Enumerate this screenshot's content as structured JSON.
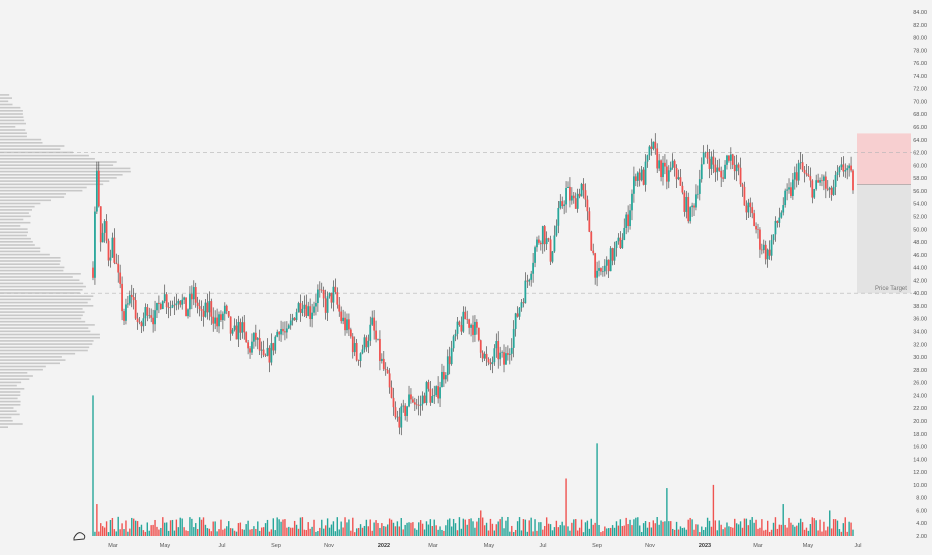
{
  "chart_data": {
    "type": "candlestick",
    "title": "",
    "xlabel": "",
    "ylabel": "",
    "ylim": [
      2,
      86
    ],
    "y_ticks": [
      "2.00",
      "4.00",
      "6.00",
      "8.00",
      "10.00",
      "12.00",
      "14.00",
      "16.00",
      "18.00",
      "20.00",
      "22.00",
      "24.00",
      "26.00",
      "28.00",
      "30.00",
      "32.00",
      "34.00",
      "36.00",
      "38.00",
      "40.00",
      "42.00",
      "44.00",
      "46.00",
      "48.00",
      "50.00",
      "52.00",
      "54.00",
      "56.00",
      "58.00",
      "60.00",
      "62.00",
      "64.00",
      "66.00",
      "68.00",
      "70.00",
      "72.00",
      "74.00",
      "76.00",
      "78.00",
      "80.00",
      "82.00",
      "84.00"
    ],
    "x_ticks": [
      {
        "label": "Mar",
        "bold": false
      },
      {
        "label": "May",
        "bold": false
      },
      {
        "label": "Jul",
        "bold": false
      },
      {
        "label": "Sep",
        "bold": false
      },
      {
        "label": "Nov",
        "bold": false
      },
      {
        "label": "2022",
        "bold": true
      },
      {
        "label": "Mar",
        "bold": false
      },
      {
        "label": "May",
        "bold": false
      },
      {
        "label": "Jul",
        "bold": false
      },
      {
        "label": "Sep",
        "bold": false
      },
      {
        "label": "Nov",
        "bold": false
      },
      {
        "label": "2023",
        "bold": true
      },
      {
        "label": "Mar",
        "bold": false
      },
      {
        "label": "May",
        "bold": false
      },
      {
        "label": "Jul",
        "bold": false
      }
    ],
    "price_path": [
      [
        0,
        44
      ],
      [
        1,
        60
      ],
      [
        2,
        48
      ],
      [
        3,
        50
      ],
      [
        4,
        46
      ],
      [
        5,
        48
      ],
      [
        6,
        44
      ],
      [
        8,
        36
      ],
      [
        10,
        40
      ],
      [
        12,
        34
      ],
      [
        14,
        38
      ],
      [
        16,
        36
      ],
      [
        18,
        40
      ],
      [
        20,
        38
      ],
      [
        22,
        40
      ],
      [
        24,
        37
      ],
      [
        26,
        40
      ],
      [
        28,
        36
      ],
      [
        30,
        38
      ],
      [
        32,
        35
      ],
      [
        34,
        37
      ],
      [
        36,
        33
      ],
      [
        38,
        35
      ],
      [
        40,
        31
      ],
      [
        42,
        33
      ],
      [
        44,
        29
      ],
      [
        46,
        31
      ],
      [
        48,
        35
      ],
      [
        50,
        33
      ],
      [
        52,
        37
      ],
      [
        54,
        39
      ],
      [
        56,
        37
      ],
      [
        58,
        40
      ],
      [
        60,
        38
      ],
      [
        62,
        40
      ],
      [
        64,
        36
      ],
      [
        66,
        34
      ],
      [
        68,
        30
      ],
      [
        70,
        32
      ],
      [
        72,
        35
      ],
      [
        74,
        30
      ],
      [
        76,
        26
      ],
      [
        78,
        20
      ],
      [
        80,
        21
      ],
      [
        82,
        24
      ],
      [
        84,
        22
      ],
      [
        86,
        25
      ],
      [
        88,
        23
      ],
      [
        90,
        27
      ],
      [
        92,
        30
      ],
      [
        94,
        34
      ],
      [
        96,
        36
      ],
      [
        98,
        35
      ],
      [
        100,
        32
      ],
      [
        102,
        28
      ],
      [
        104,
        31
      ],
      [
        106,
        29
      ],
      [
        108,
        33
      ],
      [
        110,
        38
      ],
      [
        112,
        42
      ],
      [
        114,
        47
      ],
      [
        116,
        50
      ],
      [
        118,
        46
      ],
      [
        120,
        52
      ],
      [
        122,
        56
      ],
      [
        124,
        54
      ],
      [
        126,
        57
      ],
      [
        128,
        50
      ],
      [
        130,
        42
      ],
      [
        132,
        44
      ],
      [
        134,
        46
      ],
      [
        136,
        48
      ],
      [
        138,
        52
      ],
      [
        140,
        59
      ],
      [
        142,
        58
      ],
      [
        144,
        63
      ],
      [
        146,
        60
      ],
      [
        148,
        58
      ],
      [
        150,
        60
      ],
      [
        152,
        55
      ],
      [
        154,
        52
      ],
      [
        156,
        57
      ],
      [
        158,
        62
      ],
      [
        160,
        60
      ],
      [
        162,
        58
      ],
      [
        164,
        62
      ],
      [
        166,
        60
      ],
      [
        168,
        54
      ],
      [
        170,
        52
      ],
      [
        172,
        48
      ],
      [
        174,
        46
      ],
      [
        176,
        50
      ],
      [
        178,
        54
      ],
      [
        180,
        56
      ],
      [
        182,
        60
      ],
      [
        184,
        58
      ],
      [
        186,
        56
      ],
      [
        188,
        58
      ],
      [
        190,
        55
      ],
      [
        192,
        58
      ],
      [
        194,
        60
      ],
      [
        196,
        57
      ]
    ],
    "volume_peaks": [
      {
        "x": 0,
        "v": 22
      },
      {
        "x": 1,
        "v": 5
      },
      {
        "x": 100,
        "v": 4
      },
      {
        "x": 122,
        "v": 9
      },
      {
        "x": 130,
        "v": 14.5
      },
      {
        "x": 148,
        "v": 7.5
      },
      {
        "x": 160,
        "v": 8
      },
      {
        "x": 178,
        "v": 5
      },
      {
        "x": 190,
        "v": 4
      }
    ],
    "volume_profile": {
      "price_min": 19,
      "price_max": 71,
      "peak_price": 59,
      "secondary_peak_price": 40
    },
    "reference_lines": [
      62,
      40
    ],
    "target_zone": {
      "stop_high": 65,
      "entry": 57,
      "target": 40
    },
    "annotation": "Price Target",
    "colors": {
      "up": "#26a69a",
      "down": "#ef5350",
      "wick": "#333333",
      "profile": "#c8c8c8",
      "stop_zone": "#f7cfd0",
      "target_zone": "#e3e3e3",
      "dashed": "#b5b5b5"
    }
  }
}
